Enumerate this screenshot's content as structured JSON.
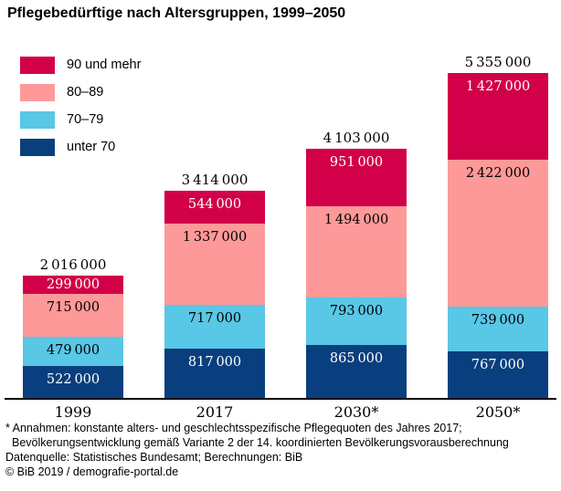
{
  "title": "Pflegebedürftige nach Altersgruppen, 1999–2050",
  "legend": [
    {
      "label": "90 und mehr",
      "color": "#d20048"
    },
    {
      "label": "80–89",
      "color": "#fd9a99"
    },
    {
      "label": "70–79",
      "color": "#59c7e6"
    },
    {
      "label": "unter 70",
      "color": "#093f7e"
    }
  ],
  "chart_data": {
    "type": "bar",
    "stacked": true,
    "title": "Pflegebedürftige nach Altersgruppen, 1999–2050",
    "categories": [
      "1999",
      "2017",
      "2030*",
      "2050*"
    ],
    "series": [
      {
        "name": "unter 70",
        "color": "#093f7e",
        "label_color": "#ffffff",
        "values": [
          522000,
          817000,
          865000,
          767000
        ]
      },
      {
        "name": "70–79",
        "color": "#59c7e6",
        "label_color": "#000000",
        "values": [
          479000,
          717000,
          793000,
          739000
        ]
      },
      {
        "name": "80–89",
        "color": "#fd9a99",
        "label_color": "#000000",
        "values": [
          715000,
          1337000,
          1494000,
          2422000
        ]
      },
      {
        "name": "90 und mehr",
        "color": "#d20048",
        "label_color": "#ffffff",
        "values": [
          299000,
          544000,
          951000,
          1427000
        ]
      }
    ],
    "totals": [
      2016000,
      3414000,
      4103000,
      5355000
    ],
    "xlabel": "",
    "ylabel": "",
    "grid": false,
    "legend_position": "top-left",
    "value_labels": "inside-segments, thin-space thousands separators"
  },
  "footnotes": [
    "* Annahmen: konstante alters- und geschlechtsspezifische Pflegequoten des Jahres 2017;",
    "Bevölkerungsentwicklung gemäß Variante 2 der 14. koordinierten Bevölkerungsvorausberechnung",
    "Datenquelle: Statistisches Bundesamt; Berechnungen: BiB",
    "© BiB 2019 / demografie-portal.de"
  ]
}
